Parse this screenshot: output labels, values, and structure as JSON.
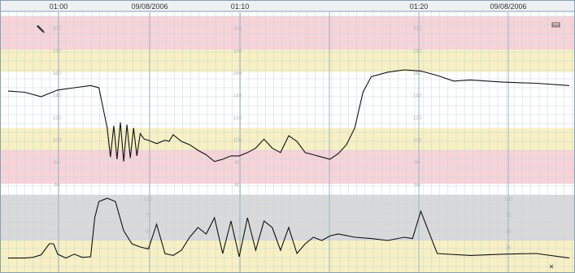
{
  "header": {
    "times": [
      "01:00",
      "01:10",
      "01:20"
    ],
    "dates": [
      "09/08/2006",
      "09/08/2006"
    ]
  },
  "icons": {
    "left": "pencil-icon",
    "right": "toolbar-icon",
    "bottom": "close-icon"
  },
  "colors": {
    "pink": "#f6d3d8",
    "yellow": "#f7f0c2",
    "white": "#ffffff",
    "grey": "#d9d9d9",
    "grid_minor": "#c9d6de",
    "grid_major": "#9fb2bf",
    "trace": "#111111",
    "label": "#b6b6b6"
  },
  "chart_data": [
    {
      "type": "line",
      "name": "fhr",
      "ylim": [
        50,
        210
      ],
      "tick_labels": [
        "200",
        "180",
        "160",
        "140",
        "120",
        "100",
        "80",
        "60"
      ],
      "bands": [
        {
          "from": 180,
          "to": 210,
          "color": "pink"
        },
        {
          "from": 160,
          "to": 180,
          "color": "yellow"
        },
        {
          "from": 110,
          "to": 160,
          "color": "white"
        },
        {
          "from": 90,
          "to": 110,
          "color": "yellow"
        },
        {
          "from": 60,
          "to": 90,
          "color": "pink"
        }
      ],
      "x": [
        0,
        2,
        4,
        6,
        8,
        10,
        11,
        12,
        12.4,
        12.8,
        13.2,
        13.6,
        14,
        14.4,
        14.8,
        15.2,
        15.6,
        16,
        16.5,
        17,
        18,
        19,
        19.5,
        20,
        21,
        22,
        23,
        24,
        25,
        26,
        27,
        28,
        29,
        30,
        31,
        32,
        33,
        34,
        35,
        36,
        37,
        38,
        39,
        40,
        41,
        42,
        43,
        44,
        46,
        48,
        50,
        52,
        54,
        56,
        60,
        64,
        68
      ],
      "y": [
        143,
        142,
        138,
        144,
        146,
        148,
        146,
        110,
        84,
        112,
        82,
        115,
        80,
        113,
        83,
        110,
        85,
        105,
        100,
        99,
        96,
        99,
        98,
        104,
        98,
        95,
        90,
        86,
        80,
        82,
        85,
        85,
        88,
        92,
        100,
        92,
        88,
        103,
        98,
        88,
        86,
        84,
        82,
        87,
        95,
        110,
        142,
        156,
        160,
        162,
        161,
        157,
        152,
        153,
        151,
        150,
        148
      ]
    },
    {
      "type": "line",
      "name": "uterine",
      "ylim": [
        0,
        100
      ],
      "tick_labels": [
        "100",
        "75",
        "50",
        "25"
      ],
      "x": [
        0,
        2,
        3,
        4,
        5,
        5.5,
        6,
        7,
        8,
        9,
        10,
        10.5,
        11,
        12,
        13,
        14,
        15,
        16,
        17,
        18,
        19,
        20,
        21,
        22,
        23,
        24,
        25,
        26,
        27,
        28,
        29,
        30,
        31,
        32,
        33,
        34,
        35,
        36,
        37,
        38,
        39,
        40,
        42,
        44,
        46,
        48,
        49,
        50,
        52,
        56,
        60,
        64,
        68
      ],
      "y": [
        8,
        8,
        9,
        13,
        30,
        30,
        14,
        8,
        14,
        9,
        10,
        70,
        95,
        100,
        95,
        50,
        30,
        25,
        22,
        60,
        15,
        12,
        20,
        40,
        55,
        45,
        70,
        15,
        65,
        10,
        70,
        20,
        65,
        55,
        20,
        55,
        15,
        30,
        40,
        35,
        42,
        45,
        40,
        38,
        35,
        40,
        38,
        80,
        15,
        12,
        14,
        15,
        8
      ]
    }
  ]
}
